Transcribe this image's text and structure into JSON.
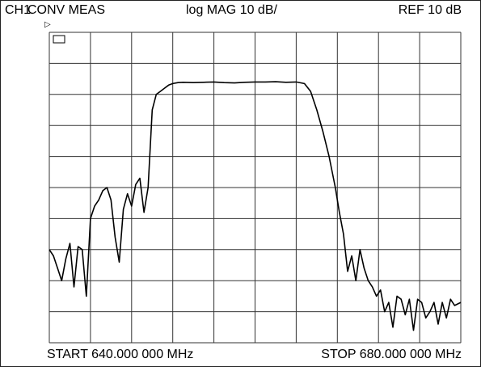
{
  "header": {
    "channel": "CH1",
    "measurement": "CONV MEAS",
    "format": "log MAG  10 dB/",
    "reference": "REF 10 dB"
  },
  "footer": {
    "start": "START  640.000 000 MHz",
    "stop": "STOP  680.000 000 MHz"
  },
  "marker_label": "▷",
  "chart_data": {
    "type": "line",
    "grid": true,
    "x_range_mhz": [
      640,
      680
    ],
    "y_divisions": 10,
    "y_scale_db_per_div": 10,
    "reference_db": 10,
    "series": [
      {
        "values_x": [
          640.0,
          640.4,
          640.8,
          641.2,
          641.6,
          642.0,
          642.4,
          642.8,
          643.2,
          643.6,
          644.0,
          644.4,
          644.8,
          645.2,
          645.6,
          646.0,
          646.4,
          646.8,
          647.2,
          647.6,
          648.0,
          648.4,
          648.8,
          649.2,
          649.6,
          650.0,
          650.4,
          650.8,
          651.2,
          651.6,
          652.0,
          652.5,
          653.0,
          654.0,
          655.0,
          656.0,
          657.0,
          658.0,
          659.0,
          660.0,
          661.0,
          662.0,
          663.0,
          664.0,
          664.8,
          665.4,
          666.0,
          666.6,
          667.2,
          667.8,
          668.2,
          668.6,
          669.0,
          669.4,
          669.8,
          670.2,
          670.6,
          671.0,
          671.4,
          671.8,
          672.2,
          672.6,
          673.0,
          673.4,
          673.8,
          674.2,
          674.6,
          675.0,
          675.4,
          675.8,
          676.2,
          676.6,
          677.0,
          677.4,
          677.8,
          678.2,
          678.6,
          679.0,
          679.4,
          680.0
        ],
        "values_y": [
          -60,
          -62,
          -66,
          -70,
          -63,
          -58,
          -72,
          -59,
          -60,
          -75,
          -50,
          -46,
          -44,
          -41,
          -40,
          -44,
          -56,
          -64,
          -47,
          -42,
          -46,
          -39,
          -37,
          -48,
          -40,
          -15,
          -10,
          -9,
          -8,
          -7,
          -6.5,
          -6.2,
          -6.1,
          -6.2,
          -6.1,
          -6.0,
          -6.2,
          -6.3,
          -6.1,
          -6.0,
          -6.0,
          -5.9,
          -6.1,
          -6.0,
          -6.5,
          -9,
          -15,
          -22,
          -30,
          -40,
          -48,
          -55,
          -67,
          -62,
          -70,
          -60,
          -66,
          -70,
          -72,
          -75,
          -73,
          -80,
          -77,
          -85,
          -75,
          -76,
          -81,
          -76,
          -86,
          -76,
          -77,
          -82,
          -80,
          -77,
          -84,
          -77,
          -82,
          -76,
          -78,
          -77
        ]
      }
    ]
  }
}
